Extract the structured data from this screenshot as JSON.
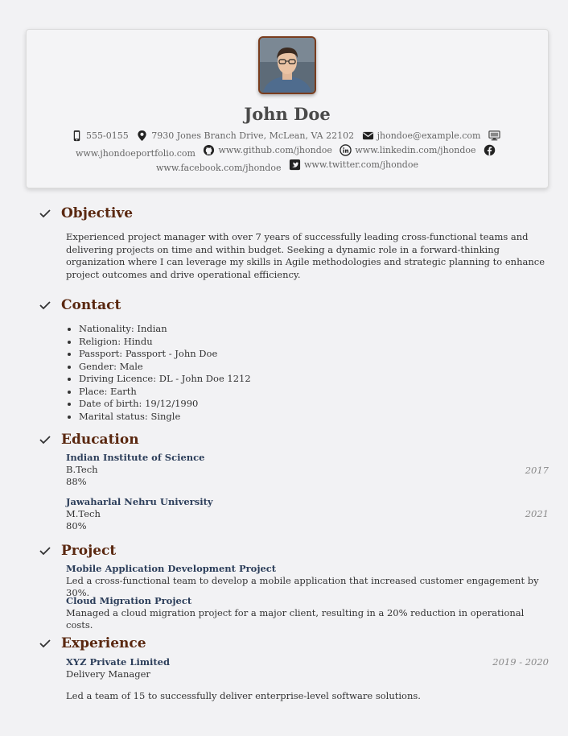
{
  "header": {
    "name": "John Doe",
    "phone": "555-0155",
    "address": "7930 Jones Branch Drive, McLean, VA 22102",
    "email": "jhondoe@example.com",
    "portfolio": "www.jhondoeportfolio.com",
    "github": "www.github.com/jhondoe",
    "linkedin": "www.linkedin.com/jhondoe",
    "facebook": "www.facebook.com/jhondoe",
    "twitter": "www.twitter.com/jhondoe"
  },
  "objective": {
    "title": "Objective",
    "text": "Experienced project manager with over 7 years of successfully leading cross-functional teams and delivering projects on time and within budget. Seeking a dynamic role in a forward-thinking organization where I can leverage my skills in Agile methodologies and strategic planning to enhance project outcomes and drive operational efficiency."
  },
  "contact": {
    "title": "Contact",
    "items": [
      "Nationality: Indian",
      "Religion: Hindu",
      "Passport: Passport - John Doe",
      "Gender: Male",
      "Driving Licence: DL - John Doe 1212",
      "Place: Earth",
      "Date of birth: 19/12/1990",
      "Marital status: Single"
    ]
  },
  "education": {
    "title": "Education",
    "items": [
      {
        "school": "Indian Institute of Science",
        "degree": "B.Tech",
        "score": "88%",
        "year": "2017"
      },
      {
        "school": "Jawaharlal Nehru University",
        "degree": "M.Tech",
        "score": "80%",
        "year": "2021"
      }
    ]
  },
  "project": {
    "title": "Project",
    "items": [
      {
        "name": "Mobile Application Development Project",
        "desc": "Led a cross-functional team to develop a mobile application that increased customer engagement by 30%."
      },
      {
        "name": "Cloud Migration Project",
        "desc": "Managed a cloud migration project for a major client, resulting in a 20% reduction in operational costs."
      }
    ]
  },
  "experience": {
    "title": "Experience",
    "items": [
      {
        "company": "XYZ Private Limited",
        "role": "Delivery Manager",
        "period": "2019 - 2020",
        "desc": "Led a team of 15 to successfully deliver enterprise-level software solutions."
      }
    ]
  }
}
